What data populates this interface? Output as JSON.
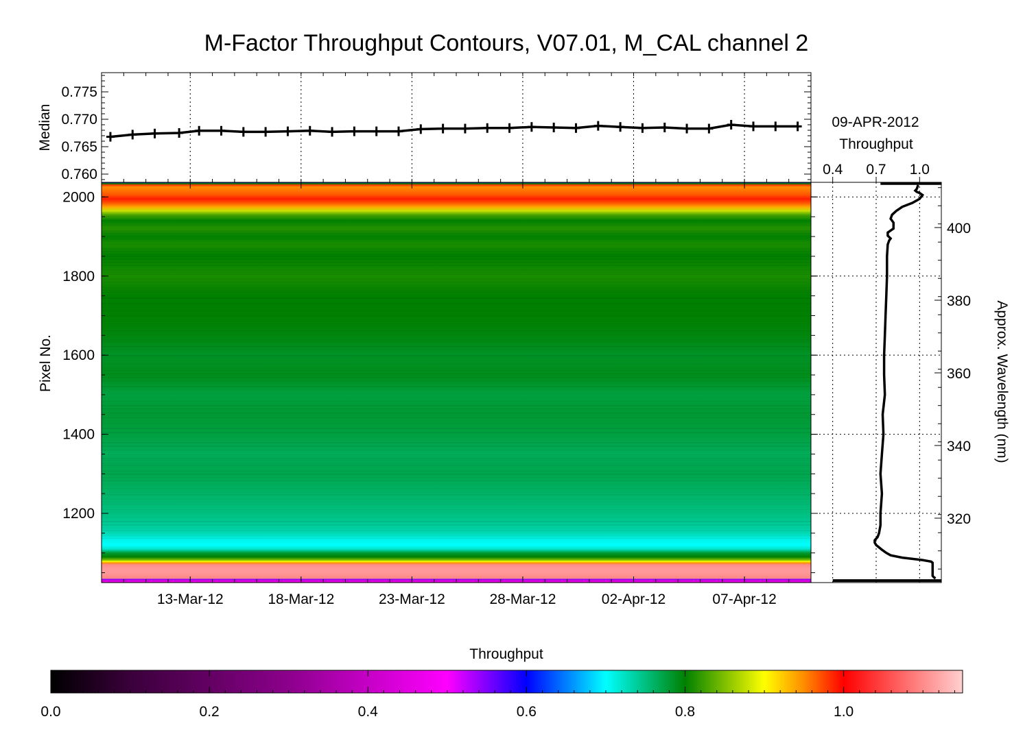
{
  "chart_data": [
    {
      "type": "line",
      "panel": "median",
      "title": "M-Factor Throughput Contours, V07.01, M_CAL channel 2",
      "ylabel": "Median",
      "ylim": [
        0.7585,
        0.7785
      ],
      "yticks": [
        0.76,
        0.765,
        0.77,
        0.775
      ],
      "ytick_labels": [
        "0.760",
        "0.765",
        "0.770",
        "0.775"
      ],
      "x_start": "2012-03-08",
      "xlim_days": [
        0,
        32
      ],
      "xticks": [
        {
          "day": 4,
          "label": "13-Mar-12"
        },
        {
          "day": 9,
          "label": "18-Mar-12"
        },
        {
          "day": 14,
          "label": "23-Mar-12"
        },
        {
          "day": 19,
          "label": "28-Mar-12"
        },
        {
          "day": 24,
          "label": "02-Apr-12"
        },
        {
          "day": 29,
          "label": "07-Apr-12"
        }
      ],
      "grid": "vertical-dotted",
      "series": [
        {
          "days": [
            0.4,
            1.4,
            2.4,
            3.5,
            4.4,
            5.4,
            6.4,
            7.4,
            8.4,
            9.4,
            10.4,
            11.4,
            12.4,
            13.4,
            14.4,
            15.4,
            16.4,
            17.4,
            18.4,
            19.4,
            20.4,
            21.4,
            22.4,
            23.4,
            24.4,
            25.4,
            26.4,
            27.4,
            28.4,
            29.4,
            30.4,
            31.4
          ],
          "values": [
            0.7668,
            0.7672,
            0.7674,
            0.7675,
            0.7679,
            0.7679,
            0.7677,
            0.7677,
            0.7678,
            0.7679,
            0.7677,
            0.7678,
            0.7678,
            0.7678,
            0.7682,
            0.7683,
            0.7683,
            0.7684,
            0.7684,
            0.7686,
            0.7685,
            0.7684,
            0.7688,
            0.7686,
            0.7684,
            0.7685,
            0.7683,
            0.7683,
            0.769,
            0.7687,
            0.7687,
            0.7687
          ]
        }
      ]
    },
    {
      "type": "heatmap",
      "panel": "contours",
      "ylabel": "Pixel No.",
      "ylim": [
        1025,
        2037
      ],
      "yticks": [
        1200,
        1400,
        1600,
        1800,
        2000
      ],
      "colorbar": {
        "label": "Throughput",
        "range": [
          0.0,
          1.15
        ],
        "ticks": [
          0.0,
          0.2,
          0.4,
          0.6,
          0.8,
          1.0
        ],
        "tick_labels": [
          "0.0",
          "0.2",
          "0.4",
          "0.6",
          "0.8",
          "1.0"
        ],
        "stops": [
          {
            "v": 0.0,
            "color": "#000000"
          },
          {
            "v": 0.1,
            "color": "#3a003a"
          },
          {
            "v": 0.3,
            "color": "#8c008c"
          },
          {
            "v": 0.5,
            "color": "#ff00ff"
          },
          {
            "v": 0.6,
            "color": "#0000ff"
          },
          {
            "v": 0.7,
            "color": "#00ffff"
          },
          {
            "v": 0.8,
            "color": "#008000"
          },
          {
            "v": 0.9,
            "color": "#ffff00"
          },
          {
            "v": 0.95,
            "color": "#ff8c00"
          },
          {
            "v": 1.0,
            "color": "#ff0000"
          },
          {
            "v": 1.15,
            "color": "#ffd0d0"
          }
        ]
      },
      "profile": {
        "pixels": [
          1025,
          1030,
          1033,
          1036,
          1040,
          1050,
          1060,
          1070,
          1075,
          1078,
          1082,
          1090,
          1100,
          1110,
          1120,
          1135,
          1150,
          1170,
          1200,
          1250,
          1300,
          1350,
          1400,
          1450,
          1500,
          1550,
          1600,
          1650,
          1700,
          1750,
          1800,
          1850,
          1880,
          1900,
          1920,
          1940,
          1955,
          1965,
          1975,
          1985,
          1995,
          2005,
          2015,
          2025,
          2030,
          2034,
          2037
        ],
        "values": [
          0.45,
          0.45,
          0.55,
          1.1,
          1.1,
          1.11,
          1.11,
          1.1,
          0.95,
          0.9,
          0.85,
          0.8,
          0.78,
          0.72,
          0.7,
          0.71,
          0.73,
          0.74,
          0.75,
          0.76,
          0.77,
          0.765,
          0.775,
          0.78,
          0.775,
          0.79,
          0.785,
          0.795,
          0.8,
          0.8,
          0.81,
          0.8,
          0.81,
          0.8,
          0.815,
          0.8,
          0.83,
          0.88,
          0.94,
          0.97,
          0.99,
          0.97,
          0.96,
          0.95,
          0.98,
          0.8,
          0.6
        ]
      }
    },
    {
      "type": "line",
      "panel": "profile",
      "title": "09-APR-2012",
      "xlabel": "Throughput",
      "xlim": [
        0.25,
        1.15
      ],
      "xticks": [
        0.4,
        0.7,
        1.0
      ],
      "xtick_labels": [
        "0.4",
        "0.7",
        "1.0"
      ],
      "ylabel": "Approx. Wavelength (nm)",
      "y2ticks": [
        320,
        340,
        360,
        380,
        400
      ],
      "grid": "dotted",
      "series": [
        {
          "pixels": [
            1036,
            1038,
            1042,
            1048,
            1060,
            1070,
            1075,
            1078,
            1082,
            1088,
            1094,
            1100,
            1108,
            1114,
            1120,
            1126,
            1132,
            1140,
            1150,
            1170,
            1200,
            1250,
            1300,
            1350,
            1400,
            1450,
            1500,
            1550,
            1600,
            1650,
            1700,
            1750,
            1800,
            1850,
            1880,
            1890,
            1895,
            1902,
            1910,
            1920,
            1935,
            1945,
            1955,
            1965,
            1975,
            1985,
            1995,
            2005,
            2010,
            2013,
            2016,
            2020,
            2030
          ],
          "values": [
            1.11,
            1.1,
            1.09,
            1.09,
            1.09,
            1.09,
            1.09,
            1.08,
            1.02,
            0.88,
            0.8,
            0.77,
            0.74,
            0.72,
            0.7,
            0.69,
            0.69,
            0.71,
            0.72,
            0.73,
            0.73,
            0.74,
            0.73,
            0.74,
            0.75,
            0.745,
            0.76,
            0.755,
            0.755,
            0.76,
            0.765,
            0.77,
            0.775,
            0.775,
            0.78,
            0.79,
            0.8,
            0.78,
            0.78,
            0.82,
            0.82,
            0.8,
            0.81,
            0.84,
            0.88,
            0.95,
            1.0,
            1.02,
            1.0,
            0.98,
            0.97,
            0.98,
            0.99
          ]
        }
      ],
      "endcaps": [
        {
          "pixel": 1030,
          "from": 0.4,
          "to": 1.15
        },
        {
          "pixel": 2034,
          "from": 0.73,
          "to": 1.15
        }
      ]
    }
  ]
}
